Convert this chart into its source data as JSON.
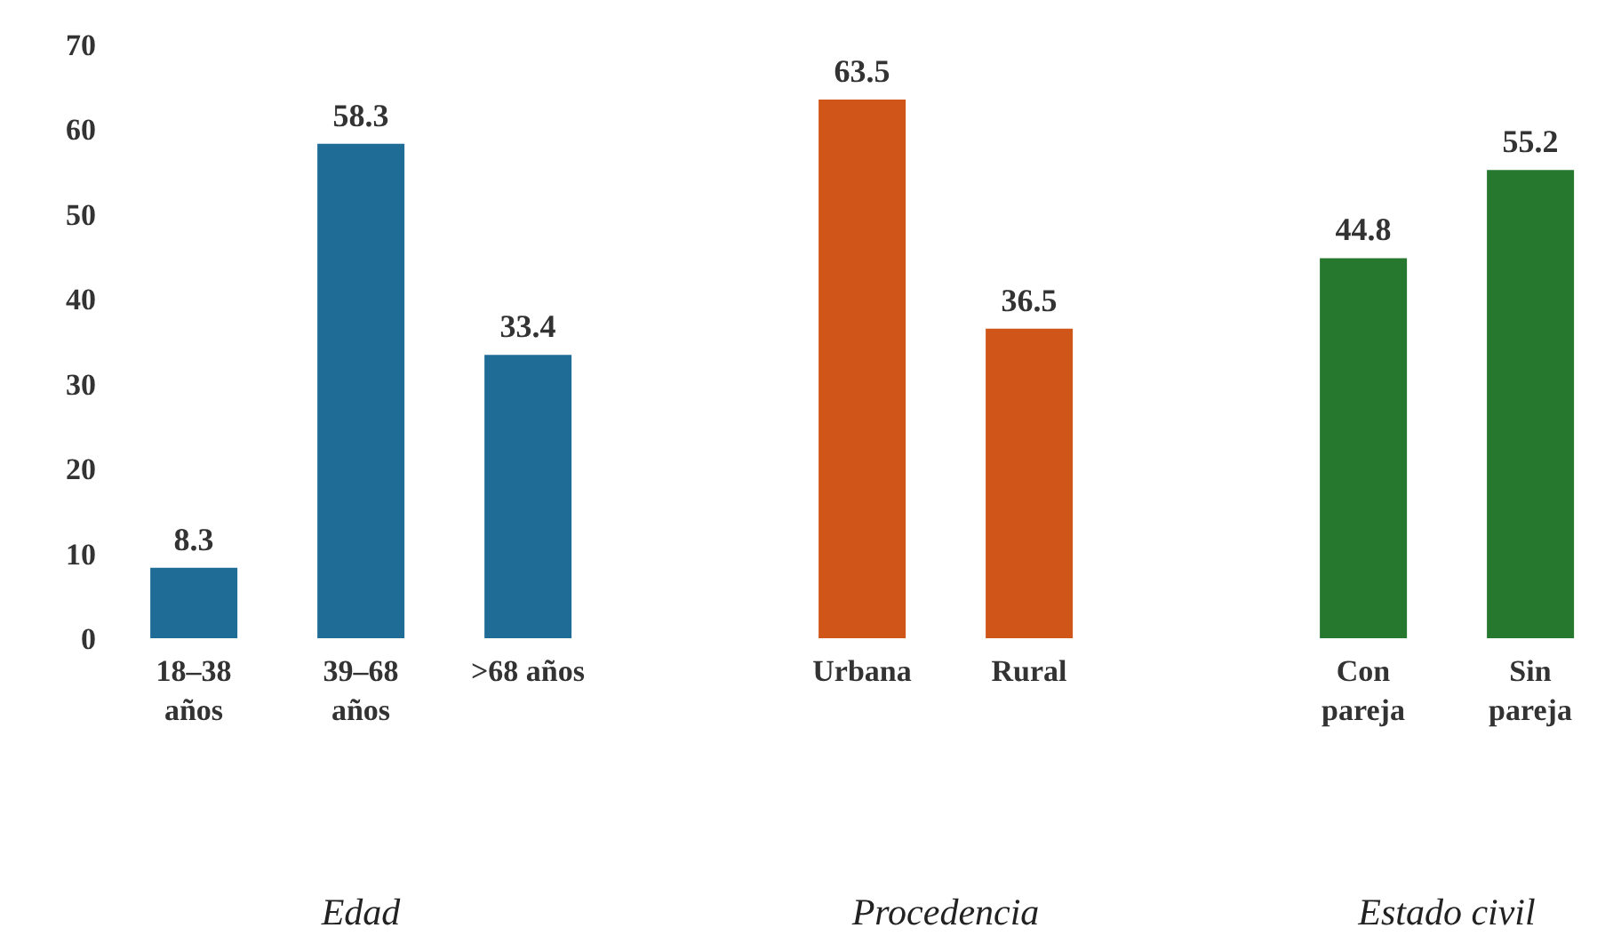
{
  "chart_data": {
    "type": "bar",
    "categories": [
      "18–38 años",
      "39–68 años",
      ">68 años",
      null,
      "Urbana",
      "Rural",
      null,
      "Con pareja",
      "Sin pareja"
    ],
    "values": [
      8.3,
      58.3,
      33.4,
      null,
      63.5,
      36.5,
      null,
      44.8,
      55.2
    ],
    "colors": [
      "#1f6d97",
      "#1f6d97",
      "#1f6d97",
      "#1f6d97",
      "#cf5519",
      "#cf5519",
      "#cf5519",
      "#27782f",
      "#27782f"
    ],
    "ylim": [
      0,
      70
    ],
    "yticks": [
      0,
      10,
      20,
      30,
      40,
      50,
      60,
      70
    ],
    "data_labels": true,
    "annotations": [
      "Edad",
      "Procedencia",
      "Estado civil"
    ]
  }
}
